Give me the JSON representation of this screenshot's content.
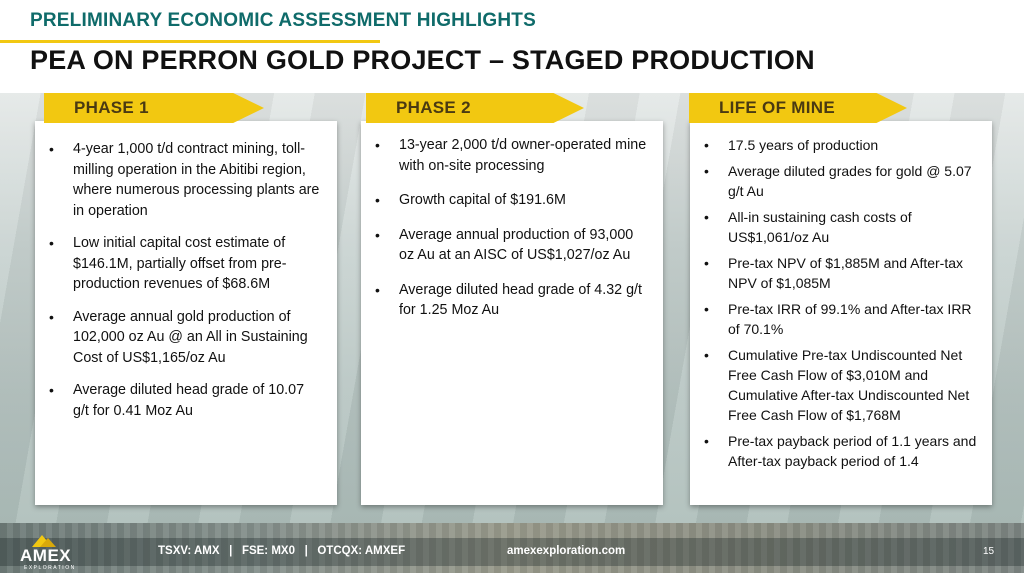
{
  "header": {
    "supertitle": "PRELIMINARY ECONOMIC ASSESSMENT HIGHLIGHTS",
    "title": "PEA ON PERRON GOLD PROJECT – STAGED PRODUCTION"
  },
  "columns": [
    {
      "tab": "PHASE 1",
      "bullets": [
        "4-year 1,000 t/d contract mining, toll-milling operation in the Abitibi region, where numerous processing plants are in operation",
        "Low initial capital cost estimate of $146.1M, partially offset from pre-production revenues of $68.6M",
        "Average annual gold production of 102,000 oz Au @ an All in Sustaining Cost of US$1,165/oz Au",
        "Average diluted head grade of 10.07 g/t for 0.41 Moz Au"
      ]
    },
    {
      "tab": "PHASE 2",
      "bullets": [
        "13-year 2,000 t/d owner-operated mine with on-site processing",
        "Growth capital of $191.6M",
        "Average annual production of 93,000 oz Au at an AISC of US$1,027/oz Au",
        "Average diluted head grade of 4.32 g/t for 1.25 Moz Au"
      ]
    },
    {
      "tab": "LIFE OF MINE",
      "bullets": [
        "17.5 years of production",
        "Average diluted grades for gold @ 5.07 g/t Au",
        "All-in sustaining cash costs of US$1,061/oz Au",
        "Pre-tax NPV of $1,885M and After-tax NPV of $1,085M",
        "Pre-tax IRR of 99.1% and After-tax IRR of 70.1%",
        "Cumulative Pre-tax Undiscounted Net Free Cash Flow of $3,010M and Cumulative After-tax Undiscounted Net Free Cash Flow of $1,768M",
        "Pre-tax payback period of 1.1 years and After-tax payback period of 1.4"
      ]
    }
  ],
  "footer": {
    "logo_text": "AMEX",
    "logo_sub": "EXPLORATION",
    "tickers": "TSXV: AMX   |   FSE: MX0   |   OTCQX: AMXEF",
    "website": "amexexploration.com",
    "page": "15"
  },
  "colors": {
    "accent_gold": "#f2c811",
    "title_teal": "#0f6b6a"
  }
}
